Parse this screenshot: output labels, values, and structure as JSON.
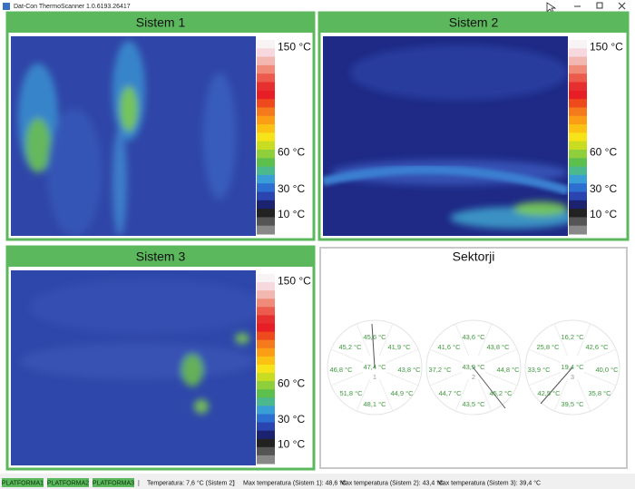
{
  "window": {
    "title": "Dat-Con ThermoScanner 1.0.6193.26417"
  },
  "panels": [
    {
      "title": "Sistem 1",
      "scale": [
        "150 °C",
        "60 °C",
        "30 °C",
        "10 °C"
      ]
    },
    {
      "title": "Sistem 2",
      "scale": [
        "150 °C",
        "60 °C",
        "30 °C",
        "10 °C"
      ]
    },
    {
      "title": "Sistem 3",
      "scale": [
        "150 °C",
        "60 °C",
        "30 °C",
        "10 °C"
      ]
    }
  ],
  "sectors": {
    "title": "Sektorji",
    "dials": [
      {
        "label": "1",
        "center": "47,4 °C",
        "values": [
          "45,6 °C",
          "41,9 °C",
          "43,8 °C",
          "44,9 °C",
          "48,1 °C",
          "51,8 °C",
          "46,8 °C",
          "45,2 °C"
        ]
      },
      {
        "label": "2",
        "center": "43,9 °C",
        "values": [
          "43,6 °C",
          "43,8 °C",
          "44,8 °C",
          "45,2 °C",
          "43,5 °C",
          "44,7 °C",
          "37,2 °C",
          "41,6 °C"
        ]
      },
      {
        "label": "3",
        "center": "19,4 °C",
        "values": [
          "16,2 °C",
          "42,6 °C",
          "40,0 °C",
          "35,8 °C",
          "39,5 °C",
          "42,5 °C",
          "33,9 °C",
          "25,8 °C"
        ]
      }
    ]
  },
  "status": {
    "buttons": [
      "PLATFORMA1",
      "PLATFORMA2",
      "PLATFORMA3"
    ],
    "separator": "|",
    "temperature": "Temperatura: 7,6 °C (Sistem 2)",
    "max": [
      "Max temperatura (Sistem 1): 48,6 °C",
      "Max temperatura (Sistem 2): 43,4 °C",
      "Max temperatura (Sistem 3): 39,4 °C"
    ]
  }
}
